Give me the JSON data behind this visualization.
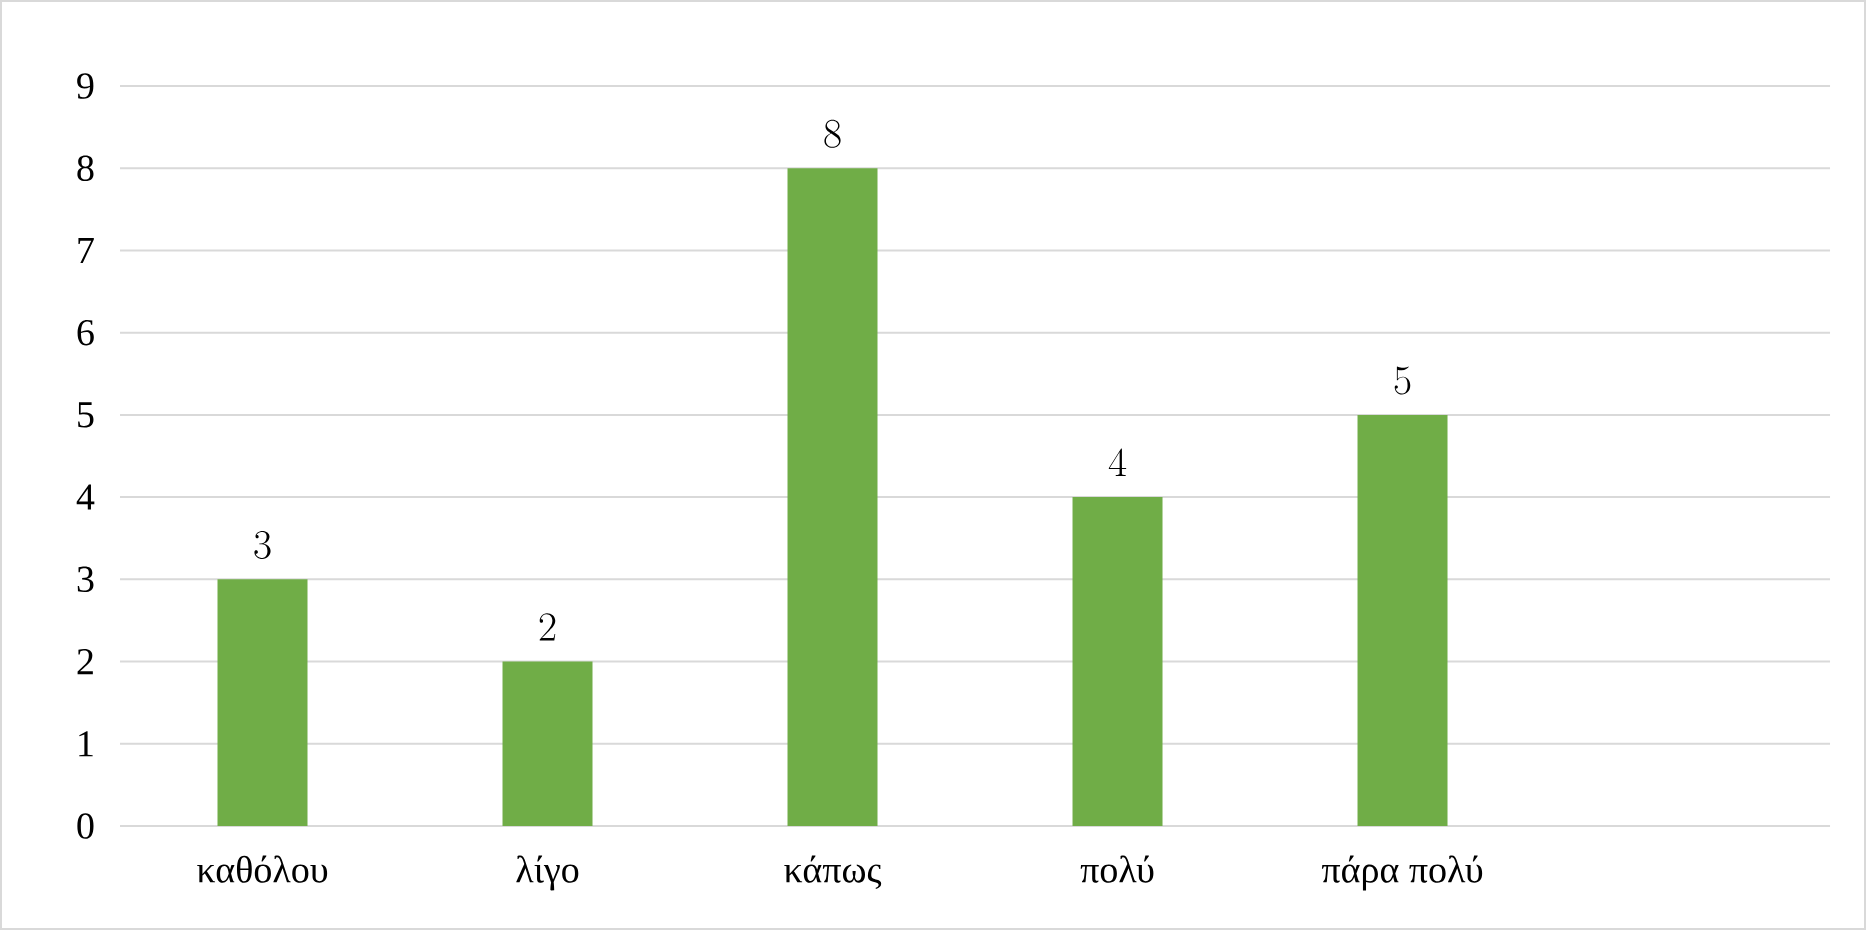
{
  "chart_data": {
    "type": "bar",
    "categories": [
      "καθόλου",
      "λίγο",
      "κάπως",
      "πολύ",
      "πάρα πολύ",
      null
    ],
    "values": [
      3,
      2,
      8,
      4,
      5,
      null
    ],
    "color": "#70ad47",
    "ylim": [
      0,
      9
    ],
    "yticks": [
      0,
      1,
      2,
      3,
      4,
      5,
      6,
      7,
      8,
      9
    ],
    "grid": "y",
    "data_labels": true
  }
}
